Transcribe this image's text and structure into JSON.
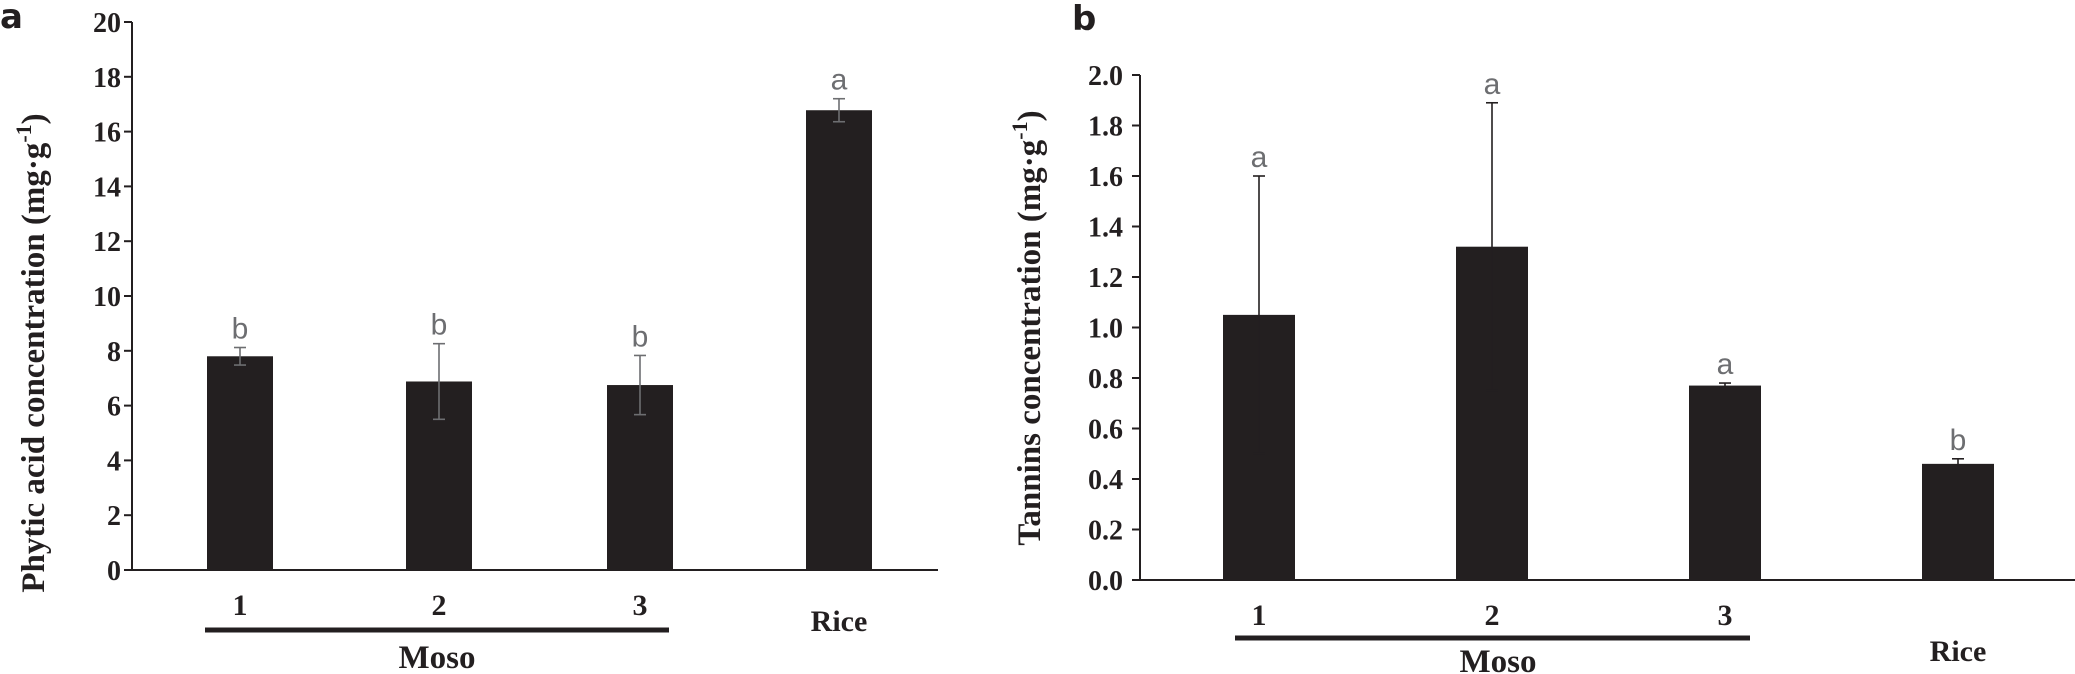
{
  "chart_data": [
    {
      "type": "bar",
      "panel": "a",
      "categories": [
        "1",
        "2",
        "3",
        "Rice"
      ],
      "group_label": "Moso",
      "values": [
        7.8,
        6.88,
        6.75,
        16.78
      ],
      "errors": [
        0.32,
        1.38,
        1.08,
        0.42
      ],
      "significance": [
        "b",
        "b",
        "b",
        "a"
      ],
      "ylabel_main": "Phytic acid concentration (mg·g",
      "ylabel_sup": "-1",
      "ylabel_close": ")",
      "ylim": [
        0,
        20
      ],
      "yticks": [
        "0",
        "2",
        "4",
        "6",
        "8",
        "10",
        "12",
        "14",
        "16",
        "18",
        "20"
      ],
      "bar_color": "#231f20",
      "error_color": "#6d6e71"
    },
    {
      "type": "bar",
      "panel": "b",
      "categories": [
        "1",
        "2",
        "3",
        "Rice"
      ],
      "group_label": "Moso",
      "values": [
        1.05,
        1.32,
        0.77,
        0.46
      ],
      "errors": [
        0.55,
        0.57,
        0.01,
        0.02
      ],
      "significance": [
        "a",
        "a",
        "a",
        "b"
      ],
      "ylabel_main": "Tannins concentration (mg·g",
      "ylabel_sup": "-1",
      "ylabel_close": ")",
      "ylim": [
        0,
        2
      ],
      "yticks": [
        "0.0",
        "0.2",
        "0.4",
        "0.6",
        "0.8",
        "1.0",
        "1.2",
        "1.4",
        "1.6",
        "1.8",
        "2.0"
      ],
      "bar_color": "#231f20",
      "error_color": "#231f20"
    }
  ]
}
